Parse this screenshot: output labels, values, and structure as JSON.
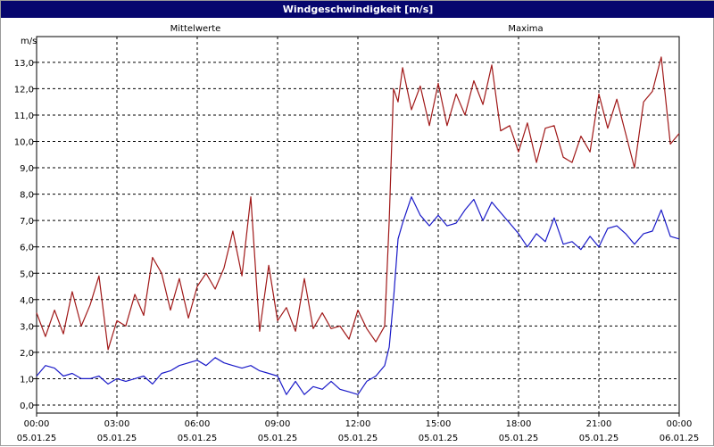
{
  "window": {
    "title": "Windgeschwindigkeit [m/s]"
  },
  "colors": {
    "mean": "#1a1ac8",
    "max": "#a01818",
    "titlebar": "#06066e"
  },
  "chart_data": {
    "type": "line",
    "title": "Windgeschwindigkeit [m/s]",
    "ylabel": "m/s",
    "ylim": [
      -0.3,
      14.5
    ],
    "yticks": [
      "0,0",
      "1,0",
      "2,0",
      "3,0",
      "4,0",
      "5,0",
      "6,0",
      "7,0",
      "8,0",
      "9,0",
      "10,0",
      "11,0",
      "12,0",
      "13,0"
    ],
    "xlim_hours": [
      0,
      24
    ],
    "x_ticks": [
      {
        "time": "00:00",
        "date": "05.01.25"
      },
      {
        "time": "03:00",
        "date": "05.01.25"
      },
      {
        "time": "06:00",
        "date": "05.01.25"
      },
      {
        "time": "09:00",
        "date": "05.01.25"
      },
      {
        "time": "12:00",
        "date": "05.01.25"
      },
      {
        "time": "15:00",
        "date": "05.01.25"
      },
      {
        "time": "18:00",
        "date": "05.01.25"
      },
      {
        "time": "21:00",
        "date": "05.01.25"
      },
      {
        "time": "00:00",
        "date": "06.01.25"
      }
    ],
    "grid": true,
    "legend": "top",
    "series": [
      {
        "name": "Mittelwerte",
        "x_hours": [
          0,
          0.33,
          0.67,
          1,
          1.33,
          1.67,
          2,
          2.33,
          2.67,
          3,
          3.33,
          3.67,
          4,
          4.33,
          4.67,
          5,
          5.33,
          5.67,
          6,
          6.33,
          6.67,
          7,
          7.33,
          7.67,
          8,
          8.33,
          8.67,
          9,
          9.33,
          9.67,
          10,
          10.33,
          10.67,
          11,
          11.33,
          11.67,
          12,
          12.33,
          12.67,
          13,
          13.17,
          13.33,
          13.5,
          13.67,
          14,
          14.33,
          14.67,
          15,
          15.33,
          15.67,
          16,
          16.33,
          16.67,
          17,
          17.33,
          17.67,
          18,
          18.33,
          18.67,
          19,
          19.33,
          19.67,
          20,
          20.33,
          20.67,
          21,
          21.33,
          21.67,
          22,
          22.33,
          22.67,
          23,
          23.33,
          23.67,
          24
        ],
        "values": [
          1.1,
          1.5,
          1.4,
          1.1,
          1.2,
          1.0,
          1.0,
          1.1,
          0.8,
          1.0,
          0.9,
          1.0,
          1.1,
          0.8,
          1.2,
          1.3,
          1.5,
          1.6,
          1.7,
          1.5,
          1.8,
          1.6,
          1.5,
          1.4,
          1.5,
          1.3,
          1.2,
          1.1,
          0.4,
          0.9,
          0.4,
          0.7,
          0.6,
          0.9,
          0.6,
          0.5,
          0.4,
          0.9,
          1.1,
          1.5,
          2.2,
          4.0,
          6.3,
          6.9,
          7.9,
          7.2,
          6.8,
          7.2,
          6.8,
          6.9,
          7.4,
          7.8,
          7.0,
          7.7,
          7.3,
          6.9,
          6.5,
          6.0,
          6.5,
          6.2,
          7.1,
          6.1,
          6.2,
          5.9,
          6.4,
          6.0,
          6.7,
          6.8,
          6.5,
          6.1,
          6.5,
          6.6,
          7.4,
          6.4,
          6.3
        ]
      },
      {
        "name": "Maxima",
        "x_hours": [
          0,
          0.33,
          0.67,
          1,
          1.33,
          1.67,
          2,
          2.33,
          2.67,
          3,
          3.33,
          3.67,
          4,
          4.33,
          4.67,
          5,
          5.33,
          5.67,
          6,
          6.33,
          6.67,
          7,
          7.33,
          7.67,
          8,
          8.33,
          8.67,
          9,
          9.33,
          9.67,
          10,
          10.33,
          10.67,
          11,
          11.33,
          11.67,
          12,
          12.33,
          12.67,
          13,
          13.17,
          13.33,
          13.5,
          13.67,
          14,
          14.33,
          14.67,
          15,
          15.33,
          15.67,
          16,
          16.33,
          16.67,
          17,
          17.33,
          17.67,
          18,
          18.33,
          18.67,
          19,
          19.33,
          19.67,
          20,
          20.33,
          20.67,
          21,
          21.33,
          21.67,
          22,
          22.33,
          22.67,
          23,
          23.33,
          23.67,
          24
        ],
        "values": [
          3.5,
          2.6,
          3.6,
          2.7,
          4.3,
          3.0,
          3.8,
          4.9,
          2.1,
          3.2,
          3.0,
          4.2,
          3.4,
          5.6,
          5.0,
          3.6,
          4.8,
          3.3,
          4.5,
          5.0,
          4.4,
          5.2,
          6.6,
          4.9,
          7.9,
          2.8,
          5.3,
          3.2,
          3.7,
          2.8,
          4.8,
          2.9,
          3.5,
          2.9,
          3.0,
          2.5,
          3.6,
          2.9,
          2.4,
          3.0,
          7.0,
          12.0,
          11.5,
          12.8,
          11.2,
          12.1,
          10.6,
          12.2,
          10.6,
          11.8,
          11.0,
          12.3,
          11.4,
          12.9,
          10.4,
          10.6,
          9.6,
          10.7,
          9.2,
          10.5,
          10.6,
          9.4,
          9.2,
          10.2,
          9.6,
          11.8,
          10.5,
          11.6,
          10.3,
          9.0,
          11.5,
          11.9,
          13.2,
          9.9,
          10.3
        ]
      }
    ]
  }
}
